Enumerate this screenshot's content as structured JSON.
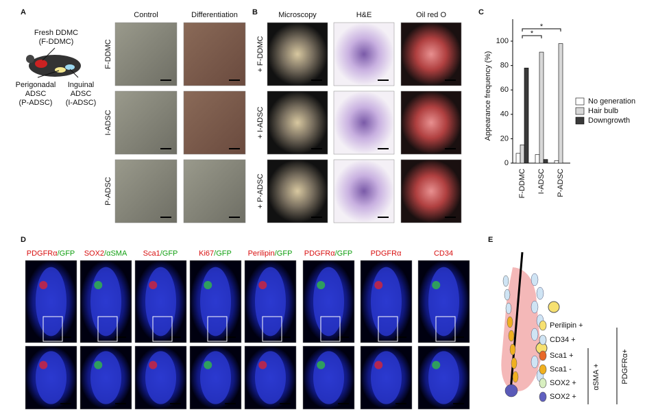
{
  "panel_a": {
    "label": "A",
    "fresh": [
      "Fresh DDMC",
      "(F-DDMC)"
    ],
    "perigonadal": [
      "Perigonadal",
      "ADSC",
      "(P-ADSC)"
    ],
    "inguinal": [
      "Inguinal",
      "ADSC",
      "(I-ADSC)"
    ],
    "columns": [
      "Control",
      "Differentiation"
    ],
    "rows": [
      "F-DDMC",
      "I-ADSC",
      "P-ADSC"
    ]
  },
  "panel_b": {
    "label": "B",
    "columns": [
      "Microscopy",
      "H&E",
      "Oil red O"
    ],
    "rows": [
      "+ F-DDMC",
      "+ I-ADSC",
      "+ P-ADSC"
    ]
  },
  "chart_data": {
    "type": "bar",
    "label": "C",
    "y_label": "Appearance frequency (%)",
    "categories": [
      "F-DDMC",
      "I-ADSC",
      "P-ADSC"
    ],
    "series": [
      {
        "name": "No generation",
        "color": "#ffffff",
        "values": [
          8,
          7,
          2
        ]
      },
      {
        "name": "Hair bulb",
        "color": "#d8d8d8",
        "values": [
          15,
          91,
          98
        ]
      },
      {
        "name": "Downgrowth",
        "color": "#3a3a3a",
        "values": [
          78,
          3,
          0
        ]
      }
    ],
    "ylim": [
      0,
      118
    ],
    "yticks": [
      0,
      20,
      40,
      60,
      80,
      100
    ],
    "grid": false,
    "legend": "right",
    "annotations": [
      "*",
      "*"
    ]
  },
  "panel_d": {
    "label": "D",
    "headers": [
      [
        {
          "text": "PDGFRα",
          "color": "#d81010"
        },
        {
          "text": "/GFP",
          "color": "#12a012"
        }
      ],
      [
        {
          "text": "SOX2",
          "color": "#d81010"
        },
        {
          "text": "/αSMA",
          "color": "#12a012"
        }
      ],
      [
        {
          "text": "Sca1",
          "color": "#d81010"
        },
        {
          "text": "/GFP",
          "color": "#12a012"
        }
      ],
      [
        {
          "text": "Ki67",
          "color": "#d81010"
        },
        {
          "text": "/GFP",
          "color": "#12a012"
        }
      ],
      [
        {
          "text": "Perilipin",
          "color": "#d81010"
        },
        {
          "text": "/GFP",
          "color": "#12a012"
        }
      ],
      [
        {
          "text": "PDGFRα",
          "color": "#d81010"
        },
        {
          "text": "/GFP",
          "color": "#12a012"
        }
      ],
      [
        {
          "text": "PDGFRα",
          "color": "#d81010"
        }
      ],
      [
        {
          "text": "CD34",
          "color": "#d81010"
        }
      ]
    ]
  },
  "panel_e": {
    "label": "E",
    "legend": [
      "Perilipin +",
      "CD34 +",
      "Sca1 +",
      "Sca1 -",
      "SOX2 +",
      "SOX2 +"
    ],
    "bracket_inner": "αSMA +",
    "bracket_outer": "PDGFRα+"
  }
}
